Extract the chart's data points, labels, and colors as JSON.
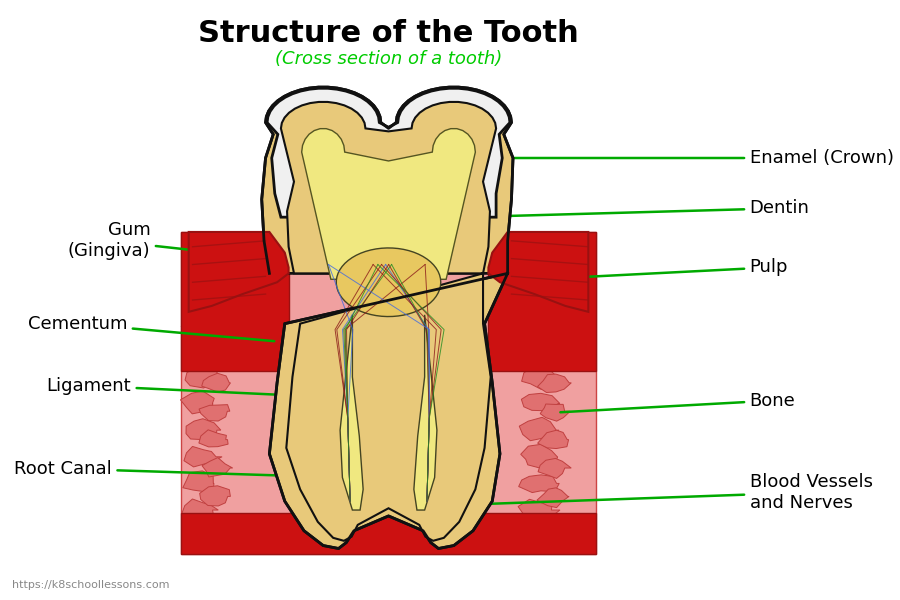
{
  "title": "Structure of the Tooth",
  "subtitle": "(Cross section of a tooth)",
  "title_color": "#000000",
  "subtitle_color": "#00cc00",
  "bg_color": "#ffffff",
  "label_color": "#000000",
  "arrow_color": "#00aa00",
  "watermark": "https://k8schoollessons.com",
  "colors": {
    "enamel": "#f0f0f0",
    "dentin": "#e8c97a",
    "pulp": "#f0e880",
    "pulp_chamber": "#e8c860",
    "gum_dark": "#cc1111",
    "gum_outline": "#991111",
    "bone_bg": "#f0a0a0",
    "bone_spot": "#e07070",
    "bone_spot_ec": "#c04040",
    "outline": "#111111",
    "nerve_colors": [
      "#8B1A1A",
      "#4169E1",
      "#8B1A1A",
      "#228B22"
    ]
  }
}
